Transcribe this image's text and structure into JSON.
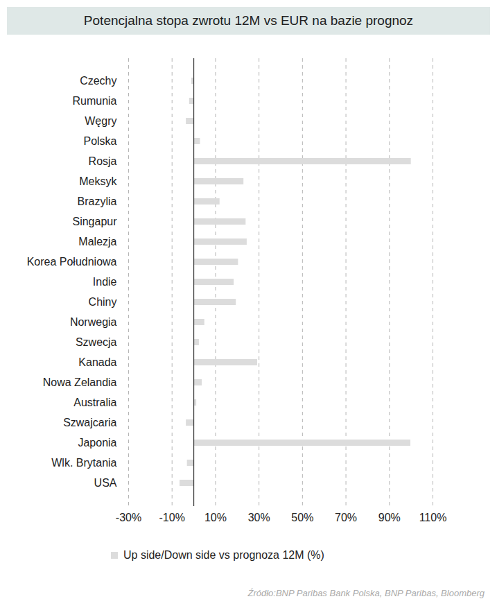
{
  "chart_data": {
    "type": "bar",
    "title": "Potencjalna stopa zwrotu 12M vs EUR na bazie prognoz",
    "orientation": "horizontal",
    "categories": [
      "Czechy",
      "Rumunia",
      "Węgry",
      "Polska",
      "Rosja",
      "Meksyk",
      "Brazylia",
      "Singapur",
      "Malezja",
      "Korea Południowa",
      "Indie",
      "Chiny",
      "Norwegia",
      "Szwecja",
      "Kanada",
      "Nowa Zelandia",
      "Australia",
      "Szwajcaria",
      "Japonia",
      "Wlk. Brytania",
      "USA"
    ],
    "series": [
      {
        "name": "Up side/Down side vs prognoza 12M (%)",
        "color": "#dcdcdc",
        "values": [
          -1,
          -2,
          -3.5,
          3,
          100,
          23,
          12,
          24,
          24.5,
          20.5,
          18.5,
          19.5,
          5,
          2.5,
          29.3,
          3.8,
          1.3,
          -3.5,
          99.8,
          -3,
          -6.4
        ]
      }
    ],
    "xlim": [
      -30,
      110
    ],
    "xticks": [
      {
        "value": -30,
        "label": "-30%"
      },
      {
        "value": -10,
        "label": "-10%"
      },
      {
        "value": 10,
        "label": "10%"
      },
      {
        "value": 30,
        "label": "30%"
      },
      {
        "value": 50,
        "label": "50%"
      },
      {
        "value": 70,
        "label": "70%"
      },
      {
        "value": 90,
        "label": "90%"
      },
      {
        "value": 110,
        "label": "110%"
      }
    ],
    "grid": true,
    "legend": "bottom",
    "source": "Źródło:BNP Paribas Bank Polska, BNP Paribas, Bloomberg"
  }
}
